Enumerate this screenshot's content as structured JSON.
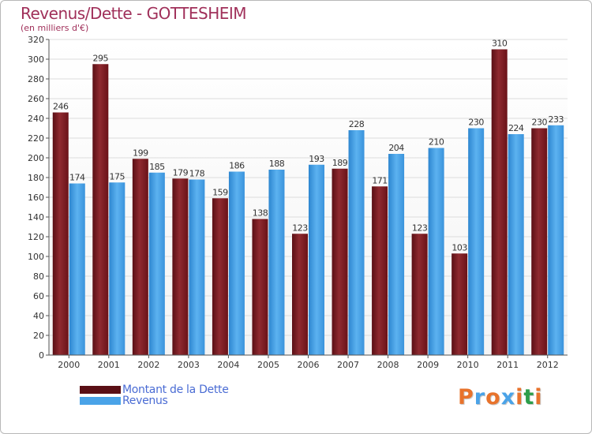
{
  "chart_data": {
    "type": "bar",
    "title": "Revenus/Dette - GOTTESHEIM",
    "subtitle": "(en milliers d'€)",
    "categories": [
      "2000",
      "2001",
      "2002",
      "2003",
      "2004",
      "2005",
      "2006",
      "2007",
      "2008",
      "2009",
      "2010",
      "2011",
      "2012"
    ],
    "series": [
      {
        "name": "Montant de la Dette",
        "color": "#8b1c24",
        "values": [
          246,
          295,
          199,
          179,
          159,
          138,
          123,
          189,
          171,
          123,
          103,
          310,
          230
        ]
      },
      {
        "name": "Revenus",
        "color": "#4aa3e8",
        "values": [
          174,
          175,
          185,
          178,
          186,
          188,
          193,
          228,
          204,
          210,
          230,
          224,
          233
        ]
      }
    ],
    "ylim": [
      0,
      320
    ],
    "ytick_step": 20,
    "grid": true,
    "legend_position": "bottom-left"
  },
  "logo": {
    "text": "Proxiti",
    "letter_colors": [
      "#e8732c",
      "#4aa3e8",
      "#e8732c",
      "#4aa3e8",
      "#e8732c",
      "#2c9e4a",
      "#e8732c"
    ]
  }
}
